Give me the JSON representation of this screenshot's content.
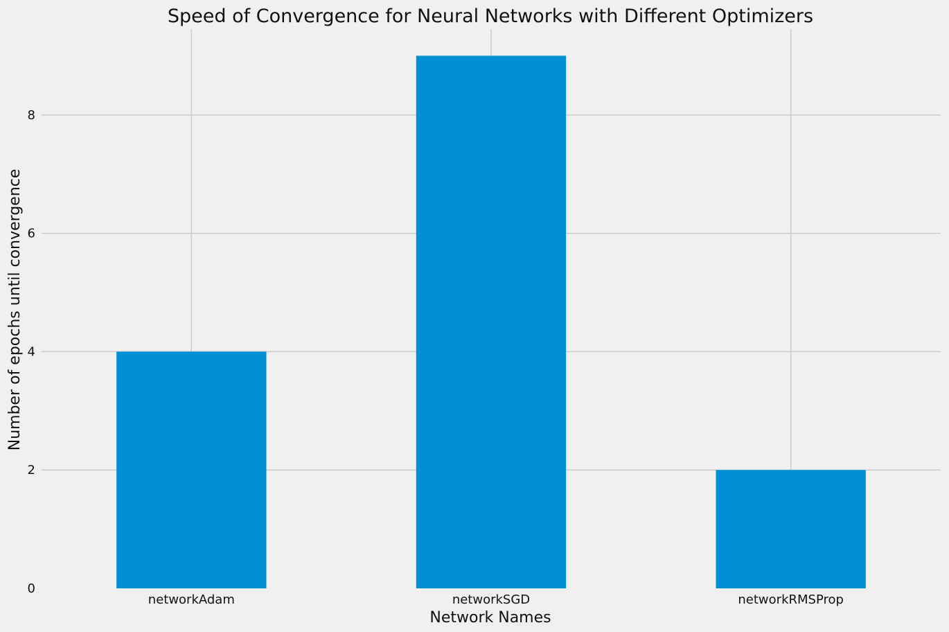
{
  "chart_data": {
    "type": "bar",
    "title": "Speed of Convergence for Neural Networks with Different Optimizers",
    "xlabel": "Network Names",
    "ylabel": "Number of epochs until convergence",
    "categories": [
      "networkAdam",
      "networkSGD",
      "networkRMSProp"
    ],
    "values": [
      4,
      9,
      2
    ],
    "yticks": [
      0,
      2,
      4,
      6,
      8
    ],
    "ylim": [
      0,
      9.45
    ],
    "grid": true,
    "bar_color": "#008fd5",
    "background_color": "#f0f0f0",
    "grid_color": "#cbcbcb"
  }
}
